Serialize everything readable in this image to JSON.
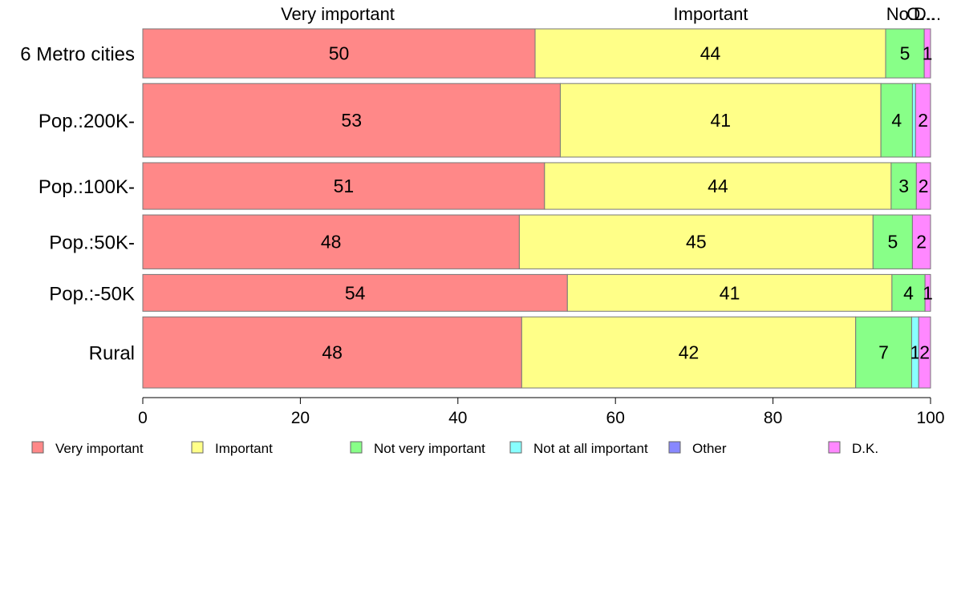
{
  "chart_data": {
    "type": "bar",
    "orientation": "horizontal",
    "stacked": true,
    "title": "",
    "xlabel": "",
    "ylabel": "",
    "xlim": [
      0,
      100
    ],
    "xticks": [
      0,
      20,
      40,
      60,
      80,
      100
    ],
    "grid": false,
    "legend_position": "bottom",
    "top_labels": [
      "Very important",
      "Important",
      "No...",
      "O...",
      "D..."
    ],
    "categories": [
      "6 Metro cities",
      "Pop.:200K-",
      "Pop.:100K-",
      "Pop.:50K-",
      "Pop.:-50K",
      "Rural"
    ],
    "row_weights": [
      1.0,
      1.5,
      0.95,
      1.1,
      0.75,
      1.45
    ],
    "series": [
      {
        "name": "Very important",
        "color": "#ff8888",
        "values": [
          49.8,
          53.0,
          51.0,
          47.8,
          53.9,
          48.1
        ],
        "labels": [
          "50",
          "53",
          "51",
          "48",
          "54",
          "48"
        ]
      },
      {
        "name": "Important",
        "color": "#ffff88",
        "values": [
          44.5,
          40.7,
          44.0,
          44.9,
          41.2,
          42.4
        ],
        "labels": [
          "44",
          "41",
          "44",
          "45",
          "41",
          "42"
        ]
      },
      {
        "name": "Not very important",
        "color": "#88ff88",
        "values": [
          4.9,
          4.0,
          3.2,
          5.0,
          4.2,
          7.1
        ],
        "labels": [
          "5",
          "4",
          "3",
          "5",
          "4",
          "7"
        ]
      },
      {
        "name": "Not at all important",
        "color": "#88ffff",
        "values": [
          0.0,
          0.4,
          0.0,
          0.0,
          0.0,
          0.9
        ],
        "labels": [
          "",
          "",
          "",
          "",
          "",
          "1"
        ]
      },
      {
        "name": "Other",
        "color": "#8888ff",
        "values": [
          0.0,
          0.0,
          0.0,
          0.0,
          0.0,
          0.0
        ],
        "labels": [
          "",
          "",
          "",
          "",
          "",
          ""
        ]
      },
      {
        "name": "D.K.",
        "color": "#ff88ff",
        "values": [
          0.8,
          1.9,
          1.8,
          2.3,
          0.7,
          1.5
        ],
        "labels": [
          "1",
          "2",
          "2",
          "2",
          "1",
          "2"
        ]
      }
    ]
  }
}
